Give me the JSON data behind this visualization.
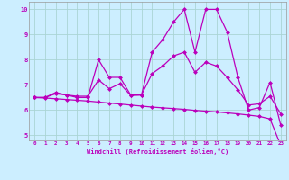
{
  "xlabel": "Windchill (Refroidissement éolien,°C)",
  "background_color": "#cceeff",
  "grid_color": "#aad4d4",
  "line_color": "#bb00bb",
  "x": [
    0,
    1,
    2,
    3,
    4,
    5,
    6,
    7,
    8,
    9,
    10,
    11,
    12,
    13,
    14,
    15,
    16,
    17,
    18,
    19,
    20,
    21,
    22,
    23
  ],
  "line1": [
    6.5,
    6.5,
    6.7,
    6.6,
    6.5,
    6.5,
    8.0,
    7.3,
    7.3,
    6.6,
    6.6,
    8.3,
    8.8,
    9.5,
    10.0,
    8.3,
    10.0,
    10.0,
    9.1,
    7.3,
    6.0,
    6.1,
    7.1,
    5.4
  ],
  "line2": [
    6.5,
    6.5,
    6.65,
    6.6,
    6.55,
    6.55,
    7.2,
    6.85,
    7.05,
    6.58,
    6.6,
    7.45,
    7.75,
    8.15,
    8.3,
    7.5,
    7.9,
    7.75,
    7.3,
    6.8,
    6.2,
    6.25,
    6.55,
    5.85
  ],
  "line3": [
    6.5,
    6.48,
    6.45,
    6.42,
    6.39,
    6.36,
    6.32,
    6.28,
    6.24,
    6.2,
    6.16,
    6.12,
    6.09,
    6.06,
    6.03,
    5.99,
    5.96,
    5.93,
    5.89,
    5.85,
    5.8,
    5.75,
    5.65,
    4.6
  ],
  "ylim": [
    5,
    10
  ],
  "xlim": [
    0,
    23
  ],
  "yticks": [
    5,
    6,
    7,
    8,
    9,
    10
  ],
  "xticks": [
    0,
    1,
    2,
    3,
    4,
    5,
    6,
    7,
    8,
    9,
    10,
    11,
    12,
    13,
    14,
    15,
    16,
    17,
    18,
    19,
    20,
    21,
    22,
    23
  ],
  "markersize": 2.5,
  "linewidth": 0.9
}
